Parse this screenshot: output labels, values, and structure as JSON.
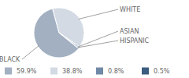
{
  "chart_data": {
    "type": "pie",
    "categories": [
      "BLACK",
      "WHITE",
      "ASIAN",
      "HISPANIC"
    ],
    "values": [
      59.9,
      38.8,
      0.8,
      0.5
    ],
    "value_labels": [
      "59.9%",
      "38.8%",
      "0.8%",
      "0.5%"
    ],
    "colors": [
      "#a3b0c2",
      "#d3dae4",
      "#6f89a6",
      "#3b5d80"
    ]
  }
}
